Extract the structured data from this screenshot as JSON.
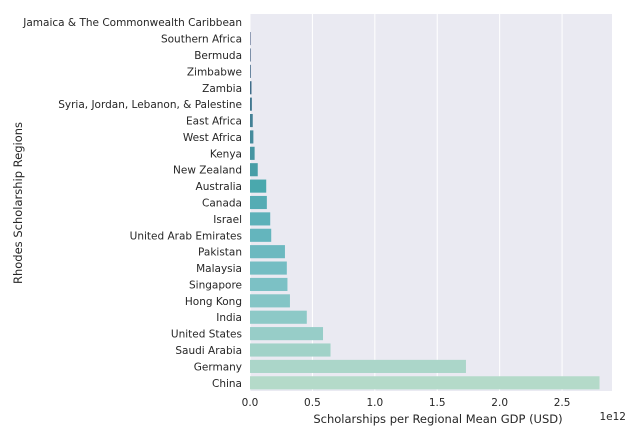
{
  "chart_data": {
    "type": "bar",
    "orientation": "horizontal",
    "xlabel": "Scholarships per Regional Mean GDP (USD)",
    "ylabel": "Rhodes Scholarship Regions",
    "offset_text": "1e12",
    "xlim": [
      0,
      2.9
    ],
    "xticks": [
      0.0,
      0.5,
      1.0,
      1.5,
      2.0,
      2.5
    ],
    "xtick_labels": [
      "0.0",
      "0.5",
      "1.0",
      "1.5",
      "2.0",
      "2.5"
    ],
    "grid": true,
    "categories": [
      "Jamaica & The Commonwealth Caribbean",
      "Southern Africa",
      "Bermuda",
      "Zimbabwe",
      "Zambia",
      "Syria, Jordan, Lebanon, & Palestine",
      "East Africa",
      "West Africa",
      "Kenya",
      "New Zealand",
      "Australia",
      "Canada",
      "Israel",
      "United Arab Emirates",
      "Pakistan",
      "Malaysia",
      "Singapore",
      "Hong Kong",
      "India",
      "United States",
      "Saudi Arabia",
      "Germany",
      "China"
    ],
    "values": [
      0.0,
      0.004,
      0.005,
      0.006,
      0.012,
      0.015,
      0.022,
      0.027,
      0.037,
      0.062,
      0.13,
      0.135,
      0.162,
      0.17,
      0.28,
      0.295,
      0.3,
      0.32,
      0.455,
      0.585,
      0.645,
      1.73,
      2.8
    ],
    "colors": [
      "#384672",
      "#3a5078",
      "#3c5a7e",
      "#3e6484",
      "#406d8a",
      "#417790",
      "#438196",
      "#458b9c",
      "#4695a2",
      "#489ea7",
      "#4aa8ad",
      "#55acb4",
      "#5db1b9",
      "#64b5bd",
      "#6cb9c0",
      "#74bdc3",
      "#7cc1c5",
      "#84c5c6",
      "#8dc9c7",
      "#97cdc8",
      "#a1d2c8",
      "#abd6c9",
      "#b4dac9"
    ]
  }
}
